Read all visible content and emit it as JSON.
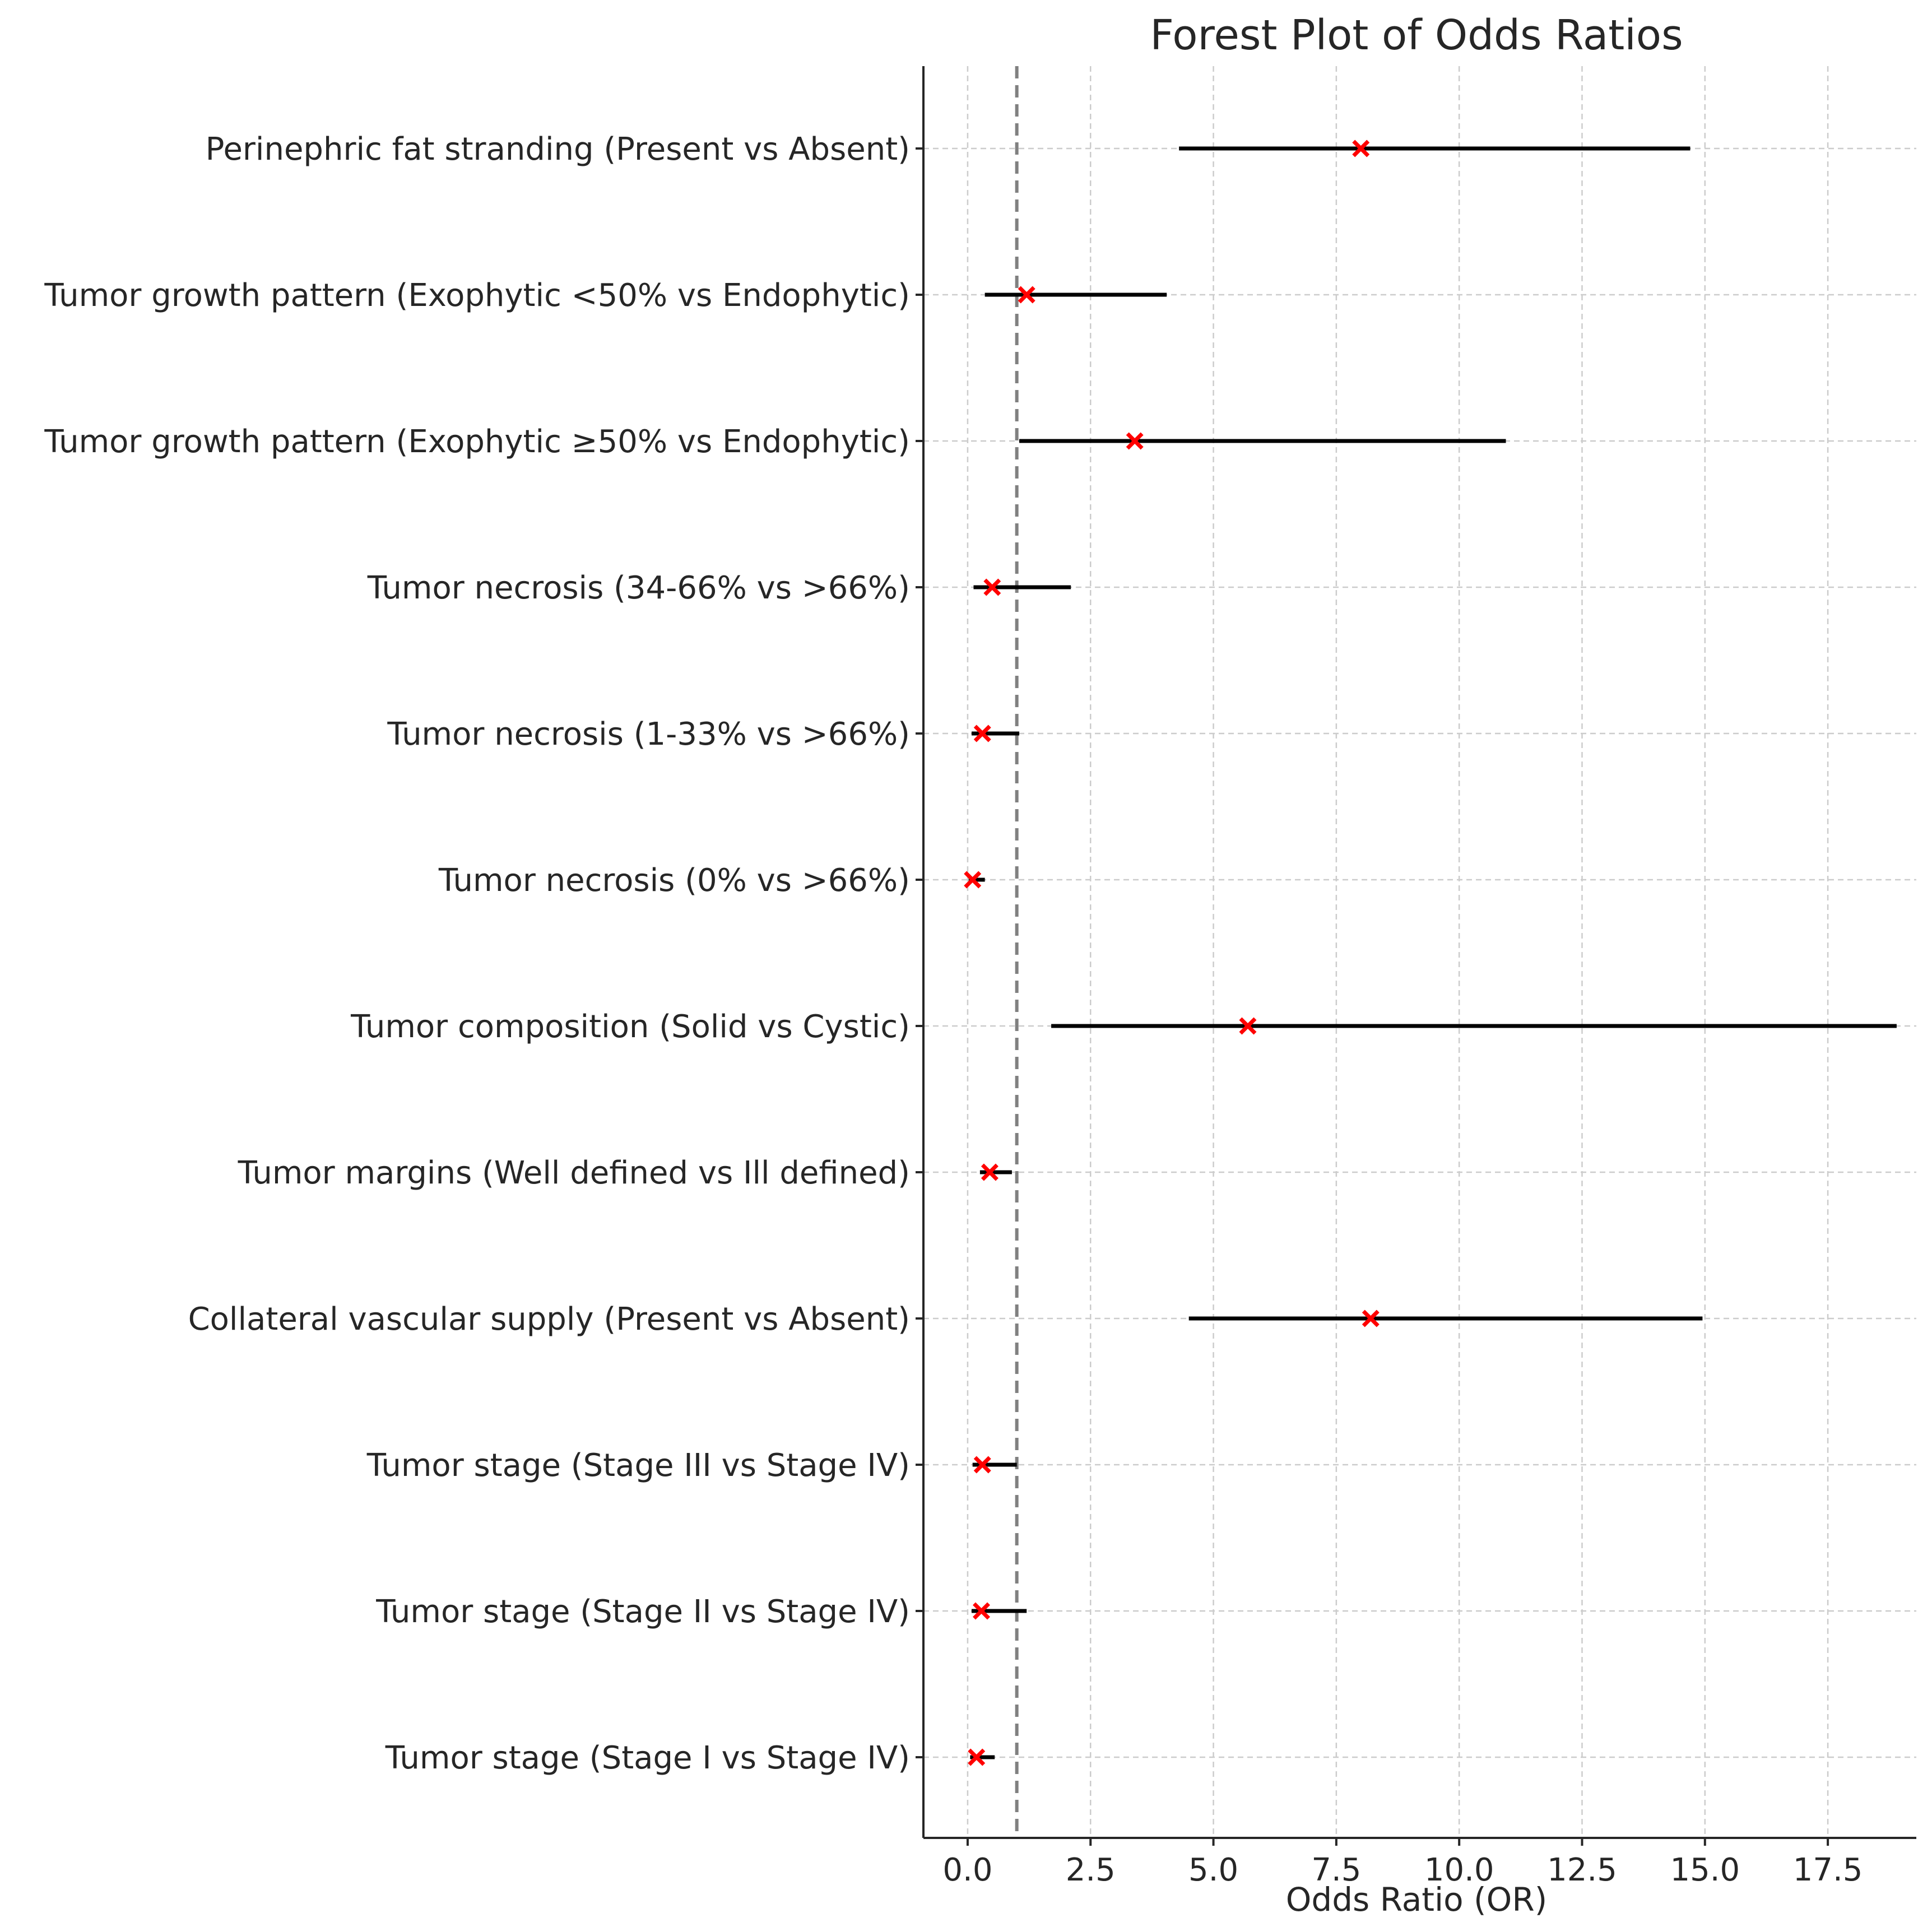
{
  "chart_data": {
    "type": "forest",
    "title": "Forest Plot of Odds Ratios",
    "xlabel": "Odds Ratio (OR)",
    "ylabel": "",
    "xlim": [
      -0.9,
      19.3
    ],
    "xticks": [
      0.0,
      2.5,
      5.0,
      7.5,
      10.0,
      12.5,
      15.0,
      17.5
    ],
    "xtick_labels": [
      "0.0",
      "2.5",
      "5.0",
      "7.5",
      "10.0",
      "12.5",
      "15.0",
      "17.5"
    ],
    "reference_line": 1.0,
    "grid": true,
    "categories": [
      "Perinephric fat stranding (Present vs Absent)",
      "Tumor growth pattern (Exophytic <50% vs Endophytic)",
      "Tumor growth pattern (Exophytic ≥50% vs Endophytic)",
      "Tumor necrosis (34-66% vs >66%)",
      "Tumor necrosis (1-33% vs >66%)",
      "Tumor necrosis (0% vs >66%)",
      "Tumor composition (Solid vs Cystic)",
      "Tumor margins (Well defined vs Ill defined)",
      "Collateral vascular supply (Present vs Absent)",
      "Tumor stage (Stage III vs Stage IV)",
      "Tumor stage (Stage II vs Stage IV)",
      "Tumor stage (Stage I vs Stage IV)"
    ],
    "or": [
      8.0,
      1.2,
      3.4,
      0.5,
      0.3,
      0.1,
      5.7,
      0.45,
      8.2,
      0.3,
      0.28,
      0.18
    ],
    "ci_lower": [
      4.3,
      0.35,
      1.05,
      0.12,
      0.08,
      0.02,
      1.7,
      0.25,
      4.5,
      0.1,
      0.08,
      0.05
    ],
    "ci_upper": [
      14.7,
      4.05,
      10.95,
      2.1,
      1.05,
      0.35,
      18.9,
      0.9,
      14.95,
      1.0,
      1.2,
      0.55
    ],
    "colors": {
      "marker": "#ff0000",
      "ci_line": "#000000",
      "reference": "#808080",
      "grid": "#cccccc",
      "text": "#262626"
    }
  }
}
